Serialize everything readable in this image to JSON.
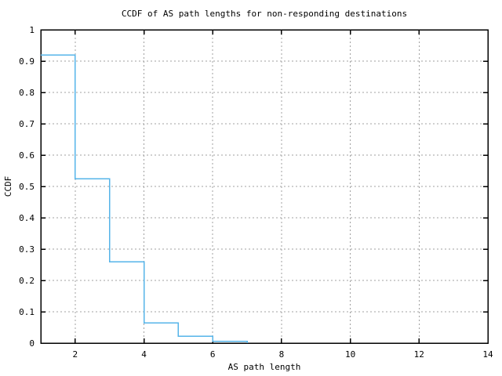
{
  "chart_data": {
    "type": "line",
    "style": "step-post",
    "title": "CCDF of AS path lengths for non-responding destinations",
    "xlabel": "AS path length",
    "ylabel": "CCDF",
    "x": [
      1,
      2,
      3,
      4,
      5,
      6,
      7
    ],
    "y": [
      0.92,
      0.525,
      0.26,
      0.065,
      0.022,
      0.006,
      0
    ],
    "xlim": [
      1,
      14
    ],
    "ylim": [
      0,
      1
    ],
    "x_ticks": [
      2,
      4,
      6,
      8,
      10,
      12,
      14
    ],
    "x_tick_labels": [
      "2",
      "4",
      "6",
      "8",
      "10",
      "12",
      "14"
    ],
    "y_ticks": [
      0,
      0.1,
      0.2,
      0.3,
      0.4,
      0.5,
      0.6,
      0.7,
      0.8,
      0.9,
      1
    ],
    "y_tick_labels": [
      "0",
      "0.1",
      "0.2",
      "0.3",
      "0.4",
      "0.5",
      "0.6",
      "0.7",
      "0.8",
      "0.9",
      "1"
    ],
    "grid": true,
    "legend": "none",
    "line_color": "#56b4e9",
    "grid_color": "#a0a0a0",
    "frame_color": "#000000",
    "background": "#ffffff"
  }
}
